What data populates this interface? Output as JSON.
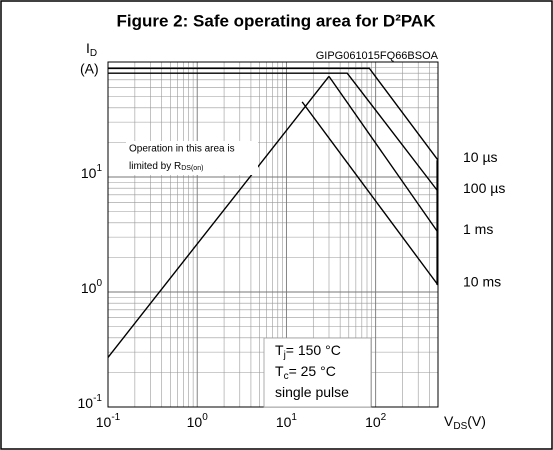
{
  "chart_data": {
    "type": "line",
    "title": "Figure 2: Safe operating area for D²PAK",
    "code": "GIPG061015FQ66BSOA",
    "ylabel": {
      "main": "I",
      "sub": "D",
      "unit": "(A)"
    },
    "xlabel": {
      "main": "V",
      "sub": "DS",
      "unit": "(V)"
    },
    "annotation": {
      "line1": "Operation in this area is",
      "line2": "limited by R",
      "line2_sub": "DS(on)"
    },
    "conditions": [
      {
        "main": "T",
        "sub": "j",
        "rest": "= 150 °C"
      },
      {
        "main": "T",
        "sub": "c",
        "rest": "= 25 °C"
      },
      {
        "main": "single pulse"
      }
    ],
    "log_x": true,
    "log_y": true,
    "grid": true,
    "minor_grid": true,
    "xlim": [
      0.1,
      500
    ],
    "ylim": [
      0.1,
      100
    ],
    "xticks": [
      {
        "value": 0.1,
        "label": "10",
        "exponent": "-1"
      },
      {
        "value": 1,
        "label": "10",
        "exponent": "0"
      },
      {
        "value": 10,
        "label": "10",
        "exponent": "1"
      },
      {
        "value": 100,
        "label": "10",
        "exponent": "2"
      }
    ],
    "yticks": [
      {
        "value": 0.1,
        "label": "10",
        "exponent": "-1"
      },
      {
        "value": 1,
        "label": "10",
        "exponent": "0"
      },
      {
        "value": 10,
        "label": "10",
        "exponent": "1"
      }
    ],
    "limit_line": {
      "x": [
        0.1,
        30
      ],
      "values": [
        0.27,
        75
      ]
    },
    "series": [
      {
        "name": "10 µs",
        "color": "#000000",
        "x": [
          0.1,
          85,
          500
        ],
        "values": [
          88,
          88,
          14
        ]
      },
      {
        "name": "100 µs",
        "color": "#000000",
        "x": [
          0.1,
          48,
          500
        ],
        "values": [
          80,
          80,
          7.5
        ]
      },
      {
        "name": "1 ms",
        "color": "#000000",
        "x": [
          30,
          500
        ],
        "values": [
          75,
          3.3
        ]
      },
      {
        "name": "10 ms",
        "color": "#000000",
        "x": [
          15,
          500
        ],
        "values": [
          45,
          1.15
        ]
      }
    ]
  }
}
